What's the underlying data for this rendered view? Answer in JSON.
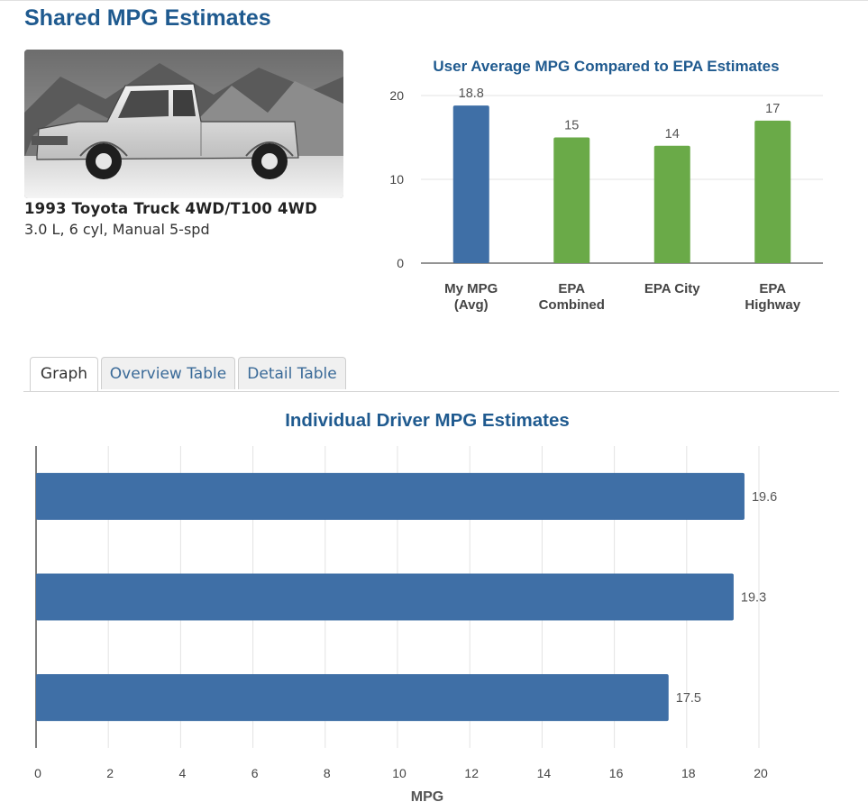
{
  "page": {
    "title": "Shared MPG Estimates"
  },
  "vehicle": {
    "name": "1993 Toyota Truck 4WD/T100 4WD",
    "specs": "3.0 L, 6 cyl, Manual 5-spd"
  },
  "tabs": [
    {
      "label": "Graph",
      "active": true
    },
    {
      "label": "Overview Table",
      "active": false
    },
    {
      "label": "Detail Table",
      "active": false
    }
  ],
  "colors": {
    "user_bar": "#3f6fa6",
    "epa_bar": "#6aaa48",
    "title": "#1f5a8f",
    "grid": "#e3e3e3"
  },
  "chart_data": [
    {
      "type": "bar",
      "title": "User Average MPG Compared to EPA Estimates",
      "categories": [
        "My MPG (Avg)",
        "EPA Combined",
        "EPA City",
        "EPA Highway"
      ],
      "values": [
        18.8,
        15,
        14,
        17
      ],
      "data_labels": [
        "18.8",
        "15",
        "14",
        "17"
      ],
      "bar_colors": [
        "#3f6fa6",
        "#6aaa48",
        "#6aaa48",
        "#6aaa48"
      ],
      "yticks": [
        0,
        10,
        20
      ],
      "ylim": [
        0,
        20.4
      ],
      "grid": true,
      "legend": "none"
    },
    {
      "type": "bar",
      "orientation": "horizontal",
      "title": "Individual Driver MPG Estimates",
      "values": [
        19.6,
        19.3,
        17.5
      ],
      "data_labels": [
        "19.6",
        "19.3",
        "17.5"
      ],
      "xticks": [
        0,
        2,
        4,
        6,
        8,
        10,
        12,
        14,
        16,
        18,
        20
      ],
      "xlim": [
        0,
        22
      ],
      "xlabel": "MPG",
      "grid": true,
      "legend": "none"
    }
  ]
}
